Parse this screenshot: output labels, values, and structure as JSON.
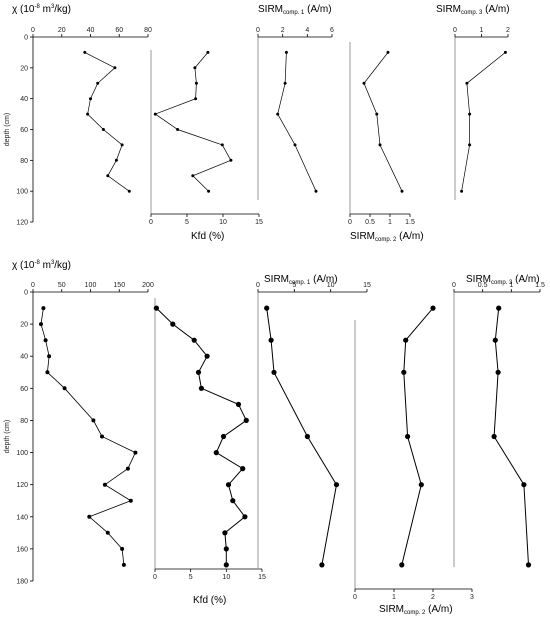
{
  "chart_data": [
    {
      "type": "line",
      "panel": "top",
      "ylabel": "depth (cm)",
      "yticks": [
        0,
        20,
        40,
        60,
        80,
        100,
        120
      ],
      "ylim": [
        0,
        120
      ],
      "subplots": [
        {
          "title_main": "χ (10",
          "title_sup": "-8",
          "title_mid": " m",
          "title_sup2": "3",
          "title_end": "/kg)",
          "xlim": [
            0,
            80
          ],
          "xticks": [
            "0",
            "20",
            "40",
            "60",
            "80"
          ],
          "depth": [
            10,
            20,
            30,
            40,
            50,
            60,
            70,
            80,
            90,
            100
          ],
          "values": [
            36,
            57,
            45,
            40,
            38,
            49,
            62,
            58,
            52,
            67
          ]
        },
        {
          "title": "Kfd (%)",
          "xlim": [
            0,
            15
          ],
          "xticks": [
            "0",
            "5",
            "10",
            "15"
          ],
          "depth": [
            10,
            20,
            30,
            40,
            50,
            60,
            70,
            80,
            90,
            100
          ],
          "values": [
            7.9,
            6.1,
            6.3,
            6.2,
            0.6,
            3.7,
            9.9,
            11.1,
            5.8,
            8.0
          ]
        },
        {
          "title_main": "SIRM",
          "title_sub": "comp. 1",
          "title_end": " (A/m)",
          "xlim": [
            0,
            6
          ],
          "xticks": [
            "0",
            "2",
            "4",
            "6"
          ],
          "depth": [
            10,
            30,
            50,
            70,
            100
          ],
          "values": [
            2.3,
            2.2,
            1.6,
            3.0,
            4.7
          ]
        },
        {
          "title_main": "SIRM",
          "title_sub": "comp. 2",
          "title_end": " (A/m)",
          "xlim": [
            0,
            1.5
          ],
          "xticks": [
            "0",
            "0.5",
            "1",
            "1.5"
          ],
          "depth": [
            10,
            30,
            50,
            70,
            100
          ],
          "values": [
            0.95,
            0.35,
            0.67,
            0.75,
            1.3
          ]
        },
        {
          "title_main": "SIRM",
          "title_sub": "comp. 3",
          "title_end": " (A/m)",
          "xlim": [
            0,
            2
          ],
          "xticks": [
            "0",
            "1",
            "2"
          ],
          "depth": [
            10,
            30,
            50,
            70,
            100
          ],
          "values": [
            1.9,
            0.45,
            0.55,
            0.55,
            0.25
          ]
        }
      ]
    },
    {
      "type": "line",
      "panel": "bottom",
      "ylabel": "depth (cm)",
      "yticks": [
        0,
        20,
        40,
        60,
        80,
        100,
        120,
        140,
        160,
        180
      ],
      "ylim": [
        0,
        180
      ],
      "subplots": [
        {
          "title_main": "χ (10",
          "title_sup": "-8",
          "title_mid": " m",
          "title_sup2": "3",
          "title_end": "/kg)",
          "xlim": [
            0,
            200
          ],
          "xticks": [
            "0",
            "50",
            "100",
            "150",
            "200"
          ],
          "depth": [
            10,
            20,
            30,
            40,
            50,
            60,
            80,
            90,
            100,
            110,
            120,
            130,
            140,
            150,
            160,
            170
          ],
          "values": [
            18,
            14,
            22,
            28,
            25,
            55,
            105,
            120,
            178,
            165,
            125,
            170,
            98,
            130,
            155,
            158
          ]
        },
        {
          "title": "Kfd (%)",
          "xlim": [
            0,
            15
          ],
          "xticks": [
            "0",
            "5",
            "10",
            "15"
          ],
          "depth": [
            10,
            20,
            30,
            40,
            50,
            60,
            70,
            80,
            90,
            100,
            110,
            120,
            130,
            140,
            150,
            160,
            170
          ],
          "values": [
            0.2,
            2.5,
            5.5,
            7.3,
            6.1,
            6.5,
            11.7,
            12.8,
            9.6,
            8.6,
            12.3,
            10.3,
            10.9,
            12.6,
            9.8,
            10.0,
            10.0
          ]
        },
        {
          "title_main": "SIRM",
          "title_sub": "comp. 1",
          "title_end": " (A/m)",
          "xlim": [
            0,
            15
          ],
          "xticks": [
            "0",
            "5",
            "10",
            "15"
          ],
          "depth": [
            10,
            30,
            50,
            90,
            120,
            170
          ],
          "values": [
            1.2,
            1.8,
            2.2,
            6.8,
            10.8,
            8.8
          ]
        },
        {
          "title_main": "SIRM",
          "title_sub": "comp. 2",
          "title_end": " (A/m)",
          "xlim": [
            0,
            3
          ],
          "xticks": [
            "0",
            "1",
            "2",
            "3"
          ],
          "depth": [
            10,
            30,
            50,
            90,
            120,
            170
          ],
          "values": [
            2.0,
            1.3,
            1.25,
            1.35,
            1.7,
            1.2
          ]
        },
        {
          "title_main": "SIRM",
          "title_sub": "comp. 3",
          "title_end": " (A/m)",
          "xlim": [
            0,
            1.5
          ],
          "xticks": [
            "0",
            "0.5",
            "1",
            "1.5"
          ],
          "depth": [
            10,
            30,
            50,
            90,
            120,
            170
          ],
          "values": [
            0.78,
            0.72,
            0.77,
            0.7,
            1.22,
            1.3
          ]
        }
      ]
    }
  ]
}
